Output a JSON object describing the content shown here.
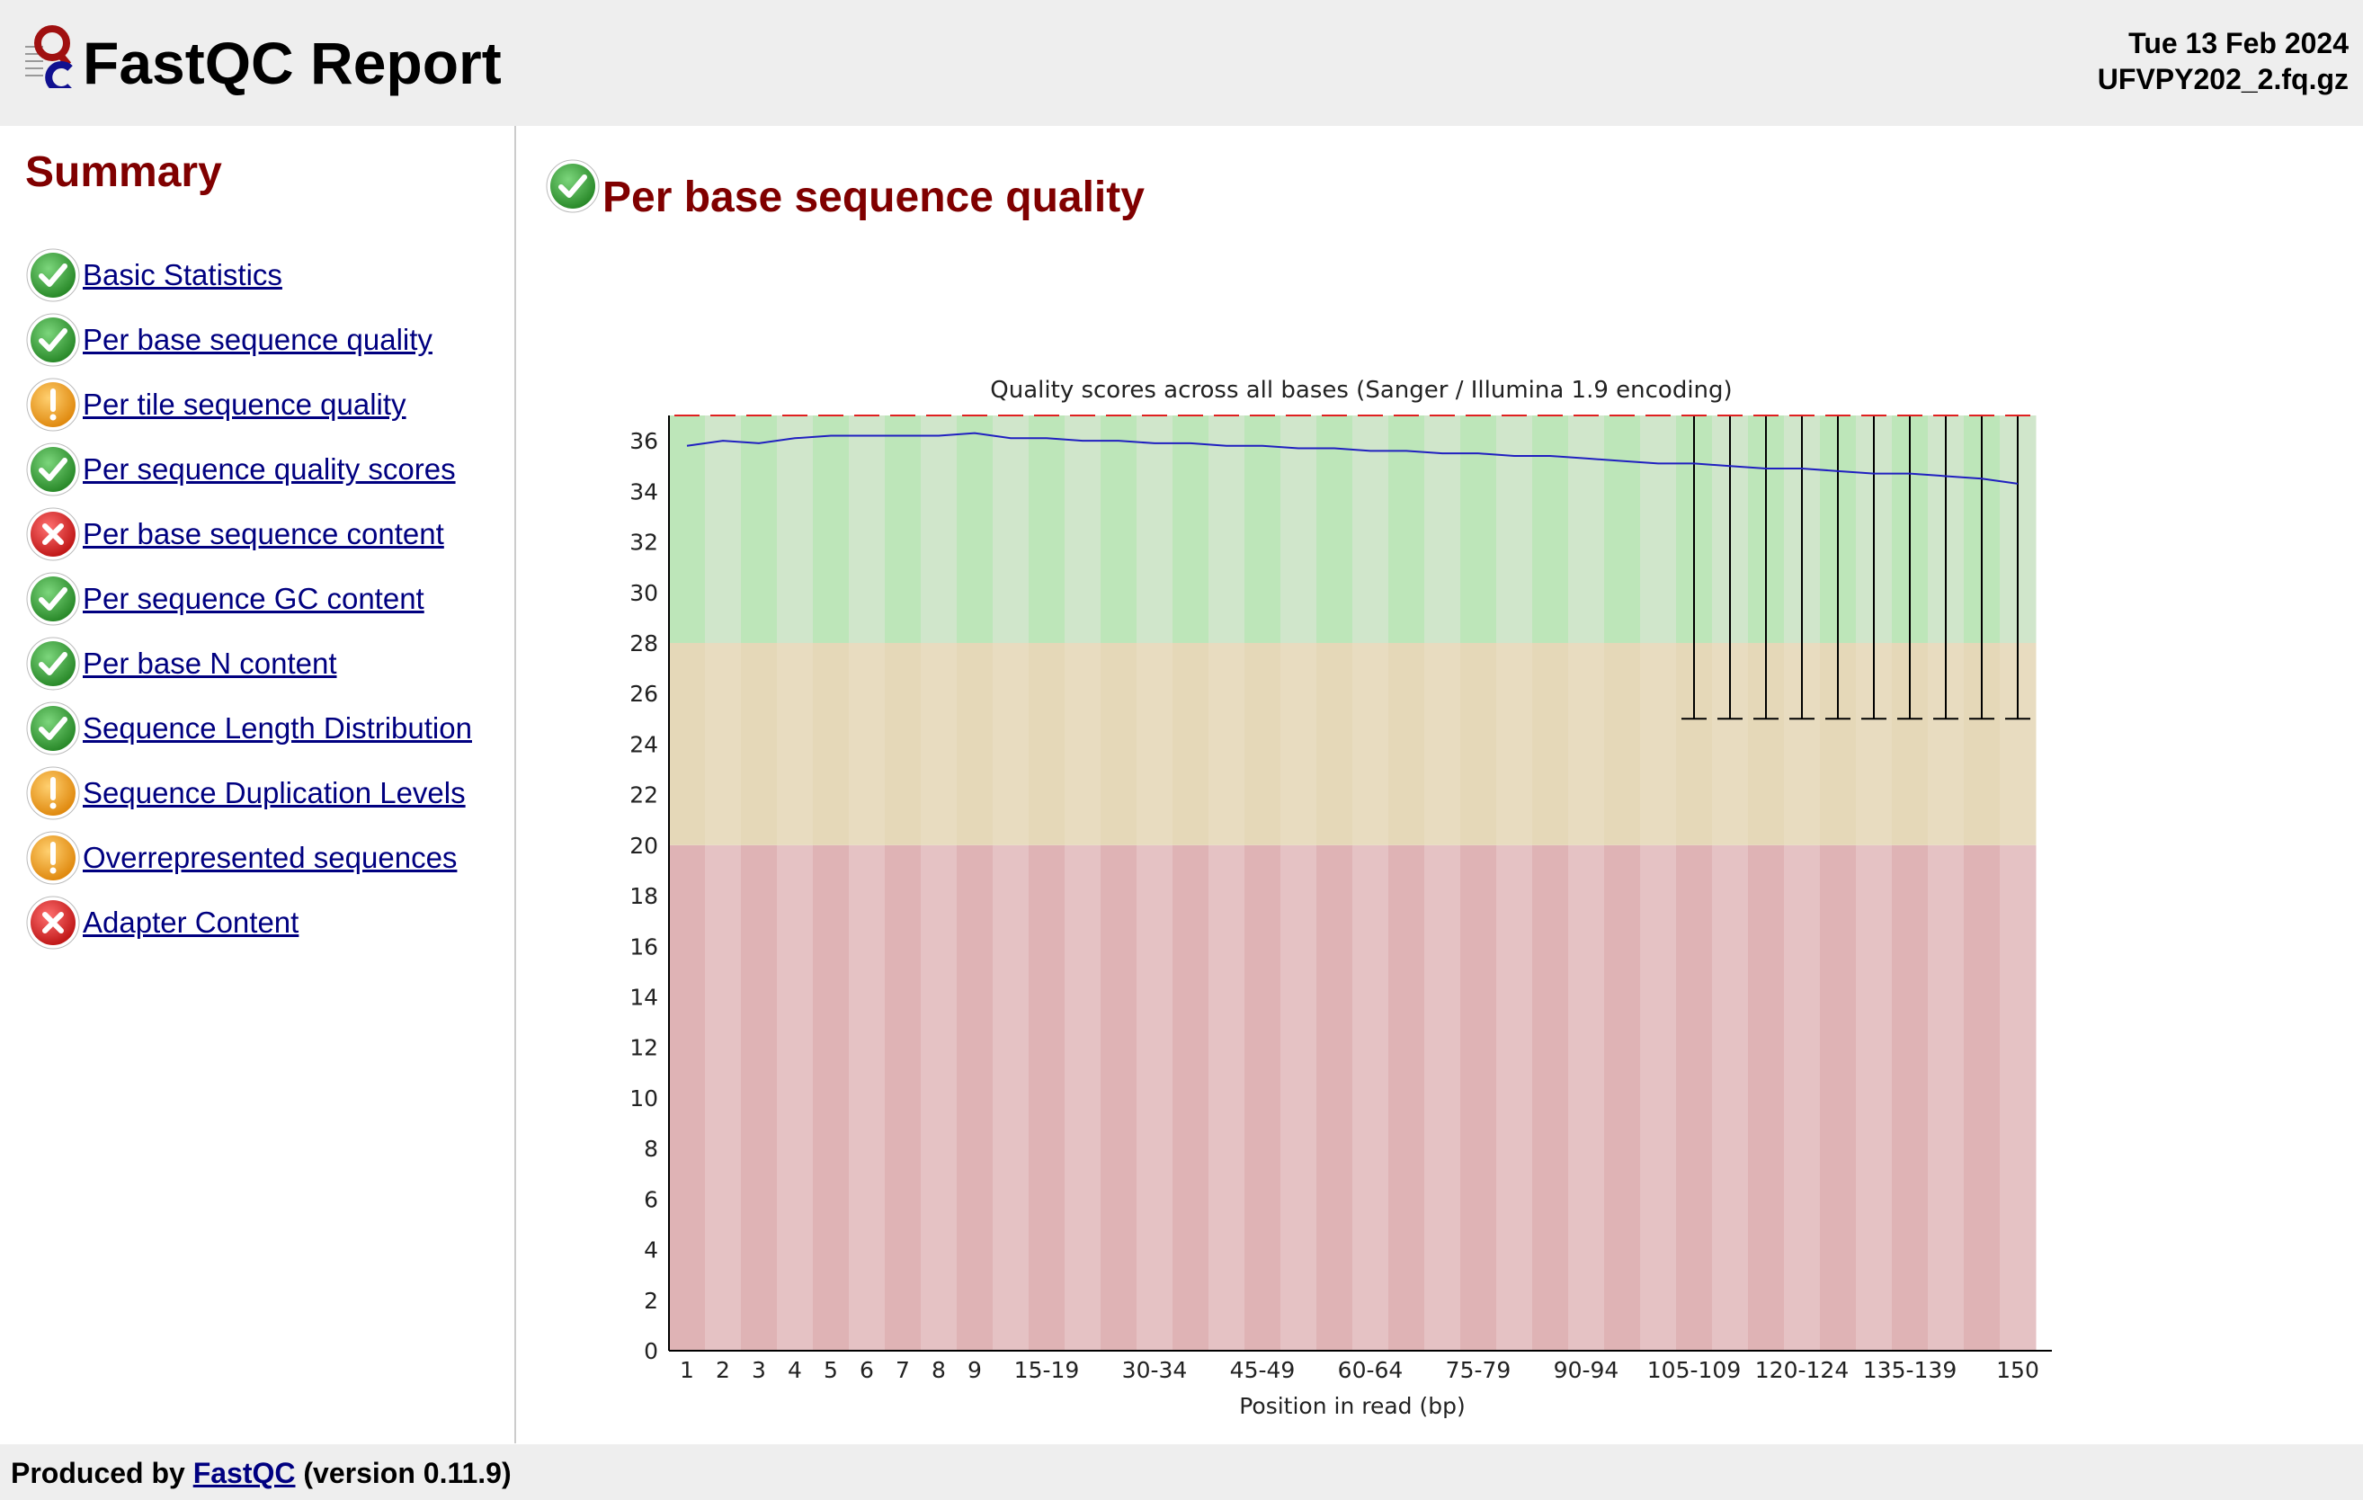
{
  "header": {
    "title": "FastQC Report",
    "date": "Tue 13 Feb 2024",
    "filename": "UFVPY202_2.fq.gz"
  },
  "summary": {
    "title": "Summary",
    "modules": [
      {
        "label": "Basic Statistics",
        "status": "pass"
      },
      {
        "label": "Per base sequence quality",
        "status": "pass"
      },
      {
        "label": "Per tile sequence quality",
        "status": "warn"
      },
      {
        "label": "Per sequence quality scores",
        "status": "pass"
      },
      {
        "label": "Per base sequence content",
        "status": "fail"
      },
      {
        "label": "Per sequence GC content",
        "status": "pass"
      },
      {
        "label": "Per base N content",
        "status": "pass"
      },
      {
        "label": "Sequence Length Distribution",
        "status": "pass"
      },
      {
        "label": "Sequence Duplication Levels",
        "status": "warn"
      },
      {
        "label": "Overrepresented sequences",
        "status": "warn"
      },
      {
        "label": "Adapter Content",
        "status": "fail"
      }
    ]
  },
  "section": {
    "title": "Per base sequence quality",
    "status": "pass"
  },
  "colors": {
    "pass": "#3a9a3a",
    "warn": "#f0a020",
    "fail": "#e02828",
    "heading": "#800000",
    "link": "#000080",
    "mean_line": "#2020c0"
  },
  "chart_data": {
    "type": "box",
    "title": "Quality scores across all bases (Sanger / Illumina 1.9 encoding)",
    "xlabel": "Position in read (bp)",
    "ylabel": "",
    "ylim": [
      0,
      37
    ],
    "yticks": [
      0,
      2,
      4,
      6,
      8,
      10,
      12,
      14,
      16,
      18,
      20,
      22,
      24,
      26,
      28,
      30,
      32,
      34,
      36
    ],
    "bands": [
      {
        "from": 0,
        "to": 20,
        "zone": "poor"
      },
      {
        "from": 20,
        "to": 28,
        "zone": "reasonable"
      },
      {
        "from": 28,
        "to": 37,
        "zone": "good"
      }
    ],
    "categories": [
      "1",
      "2",
      "3",
      "4",
      "5",
      "6",
      "7",
      "8",
      "9",
      "10-14",
      "15-19",
      "20-24",
      "25-29",
      "30-34",
      "35-39",
      "40-44",
      "45-49",
      "50-54",
      "55-59",
      "60-64",
      "65-69",
      "70-74",
      "75-79",
      "80-84",
      "85-89",
      "90-94",
      "95-99",
      "100-104",
      "105-109",
      "110-114",
      "115-119",
      "120-124",
      "125-129",
      "130-134",
      "135-139",
      "140-144",
      "145-149",
      "150"
    ],
    "tick_labels": [
      "1",
      "2",
      "3",
      "4",
      "5",
      "6",
      "7",
      "8",
      "9",
      "",
      "15-19",
      "",
      "",
      "30-34",
      "",
      "",
      "45-49",
      "",
      "",
      "60-64",
      "",
      "",
      "75-79",
      "",
      "",
      "90-94",
      "",
      "",
      "105-109",
      "",
      "",
      "120-124",
      "",
      "",
      "135-139",
      "",
      "",
      "150"
    ],
    "mean": [
      35.8,
      36.0,
      35.9,
      36.1,
      36.2,
      36.2,
      36.2,
      36.2,
      36.3,
      36.1,
      36.1,
      36.0,
      36.0,
      35.9,
      35.9,
      35.8,
      35.8,
      35.7,
      35.7,
      35.6,
      35.6,
      35.5,
      35.5,
      35.4,
      35.4,
      35.3,
      35.2,
      35.1,
      35.1,
      35.0,
      34.9,
      34.9,
      34.8,
      34.7,
      34.7,
      34.6,
      34.5,
      34.3
    ],
    "median": [
      37,
      37,
      37,
      37,
      37,
      37,
      37,
      37,
      37,
      37,
      37,
      37,
      37,
      37,
      37,
      37,
      37,
      37,
      37,
      37,
      37,
      37,
      37,
      37,
      37,
      37,
      37,
      37,
      37,
      37,
      37,
      37,
      37,
      37,
      37,
      37,
      37,
      37
    ],
    "whisker_low": [
      37,
      37,
      37,
      37,
      37,
      37,
      37,
      37,
      37,
      37,
      37,
      37,
      37,
      37,
      37,
      37,
      37,
      37,
      37,
      37,
      37,
      37,
      37,
      37,
      37,
      37,
      37,
      37,
      25,
      25,
      25,
      25,
      25,
      25,
      25,
      25,
      25,
      25
    ],
    "whisker_high": [
      37,
      37,
      37,
      37,
      37,
      37,
      37,
      37,
      37,
      37,
      37,
      37,
      37,
      37,
      37,
      37,
      37,
      37,
      37,
      37,
      37,
      37,
      37,
      37,
      37,
      37,
      37,
      37,
      37,
      37,
      37,
      37,
      37,
      37,
      37,
      37,
      37,
      37
    ]
  },
  "footer": {
    "prefix": "Produced by",
    "link": "FastQC",
    "version": "(version 0.11.9)"
  }
}
